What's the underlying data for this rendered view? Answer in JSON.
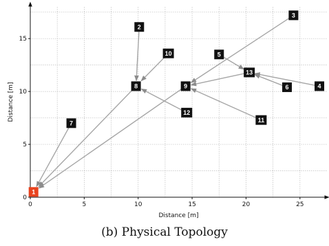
{
  "caption": "(b) Physical Topology",
  "chart_data": {
    "type": "scatter",
    "xlabel": "Distance [m]",
    "ylabel": "Distance [m]",
    "xlim": [
      0,
      27.5
    ],
    "ylim": [
      0,
      18
    ],
    "xticks": [
      0,
      5,
      10,
      15,
      20,
      25
    ],
    "yticks": [
      0,
      5,
      10,
      15
    ],
    "grid": true,
    "colors": {
      "sink": "#e8431f",
      "node": "#111111",
      "link": "#a6a6a6",
      "grid": "#bdbdbd"
    },
    "nodes": [
      {
        "id": "1",
        "x": 0.3,
        "y": 0.5,
        "role": "sink"
      },
      {
        "id": "2",
        "x": 10.1,
        "y": 16.1
      },
      {
        "id": "3",
        "x": 24.4,
        "y": 17.2
      },
      {
        "id": "4",
        "x": 26.8,
        "y": 10.5
      },
      {
        "id": "5",
        "x": 17.5,
        "y": 13.5
      },
      {
        "id": "6",
        "x": 23.8,
        "y": 10.4
      },
      {
        "id": "7",
        "x": 3.8,
        "y": 7.0
      },
      {
        "id": "8",
        "x": 9.8,
        "y": 10.5
      },
      {
        "id": "9",
        "x": 14.4,
        "y": 10.5
      },
      {
        "id": "10",
        "x": 12.8,
        "y": 13.6
      },
      {
        "id": "11",
        "x": 21.4,
        "y": 7.3
      },
      {
        "id": "12",
        "x": 14.5,
        "y": 8.0
      },
      {
        "id": "13",
        "x": 20.3,
        "y": 11.8
      }
    ],
    "links": [
      {
        "from": "7",
        "to": "1"
      },
      {
        "from": "8",
        "to": "1"
      },
      {
        "from": "9",
        "to": "1"
      },
      {
        "from": "3",
        "to": "9"
      },
      {
        "from": "2",
        "to": "8"
      },
      {
        "from": "10",
        "to": "8"
      },
      {
        "from": "12",
        "to": "8"
      },
      {
        "from": "11",
        "to": "9"
      },
      {
        "from": "13",
        "to": "9"
      },
      {
        "from": "5",
        "to": "13"
      },
      {
        "from": "4",
        "to": "13"
      },
      {
        "from": "6",
        "to": "13"
      }
    ]
  }
}
